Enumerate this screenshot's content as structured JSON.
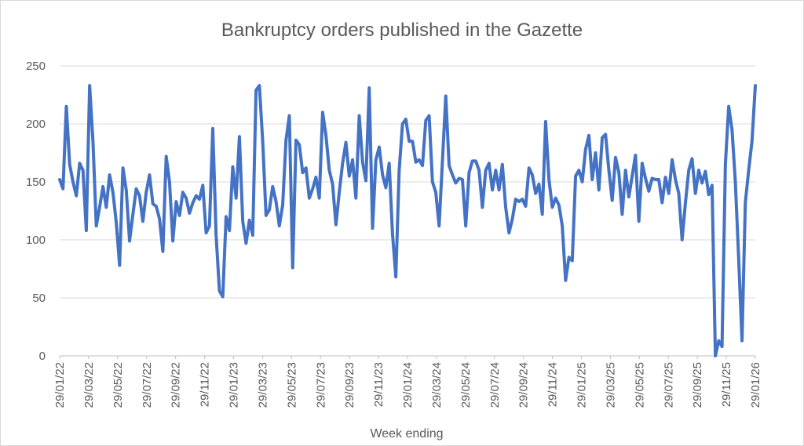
{
  "chart_data": {
    "type": "line",
    "title": "Bankruptcy orders published in the Gazette",
    "xlabel": "Week ending",
    "ylabel": "",
    "ylim": [
      0,
      250
    ],
    "yticks": [
      0,
      50,
      100,
      150,
      200,
      250
    ],
    "grid": true,
    "legend": "none",
    "series_color": "#4472c4",
    "x_start": "29/01/22",
    "x_end": "29/01/26",
    "xticks": [
      "29/01/22",
      "29/03/22",
      "29/05/22",
      "29/07/22",
      "29/09/22",
      "29/11/22",
      "29/01/23",
      "29/03/23",
      "29/05/23",
      "29/07/23",
      "29/09/23",
      "29/11/23",
      "29/01/24",
      "29/03/24",
      "29/05/24",
      "29/07/24",
      "29/09/24",
      "29/11/24",
      "29/01/25",
      "29/03/25",
      "29/05/25",
      "29/07/25",
      "29/09/25",
      "29/11/25",
      "29/01/26"
    ],
    "series": [
      {
        "values": [
          152,
          144,
          215,
          165,
          150,
          138,
          166,
          160,
          108,
          233,
          185,
          112,
          128,
          146,
          128,
          156,
          141,
          115,
          78,
          162,
          143,
          99,
          122,
          144,
          138,
          116,
          141,
          156,
          131,
          129,
          118,
          90,
          172,
          150,
          99,
          133,
          121,
          141,
          136,
          123,
          132,
          138,
          135,
          147,
          106,
          112,
          196,
          104,
          56,
          51,
          120,
          108,
          163,
          136,
          189,
          116,
          97,
          117,
          104,
          229,
          233,
          185,
          121,
          126,
          146,
          133,
          112,
          130,
          186,
          207,
          76,
          186,
          182,
          158,
          162,
          136,
          144,
          154,
          136,
          210,
          190,
          160,
          148,
          113,
          141,
          166,
          184,
          155,
          169,
          136,
          207,
          167,
          151,
          231,
          110,
          169,
          180,
          156,
          145,
          166,
          105,
          68,
          160,
          200,
          204,
          185,
          185,
          167,
          169,
          164,
          203,
          207,
          150,
          141,
          112,
          168,
          224,
          164,
          156,
          149,
          153,
          152,
          112,
          158,
          168,
          168,
          160,
          128,
          160,
          166,
          143,
          160,
          143,
          165,
          128,
          106,
          118,
          135,
          133,
          135,
          129,
          162,
          156,
          140,
          148,
          122,
          202,
          152,
          128,
          136,
          130,
          112,
          65,
          85,
          82,
          155,
          160,
          150,
          178,
          190,
          152,
          175,
          143,
          188,
          191,
          160,
          134,
          171,
          158,
          122,
          160,
          137,
          155,
          173,
          116,
          166,
          153,
          142,
          153,
          152,
          152,
          132,
          154,
          140,
          169,
          152,
          140,
          100,
          132,
          160,
          170,
          140,
          160,
          149,
          159,
          139,
          147,
          0,
          13,
          8,
          165,
          215,
          195,
          150,
          84,
          13,
          132,
          160,
          185,
          233
        ]
      }
    ]
  }
}
